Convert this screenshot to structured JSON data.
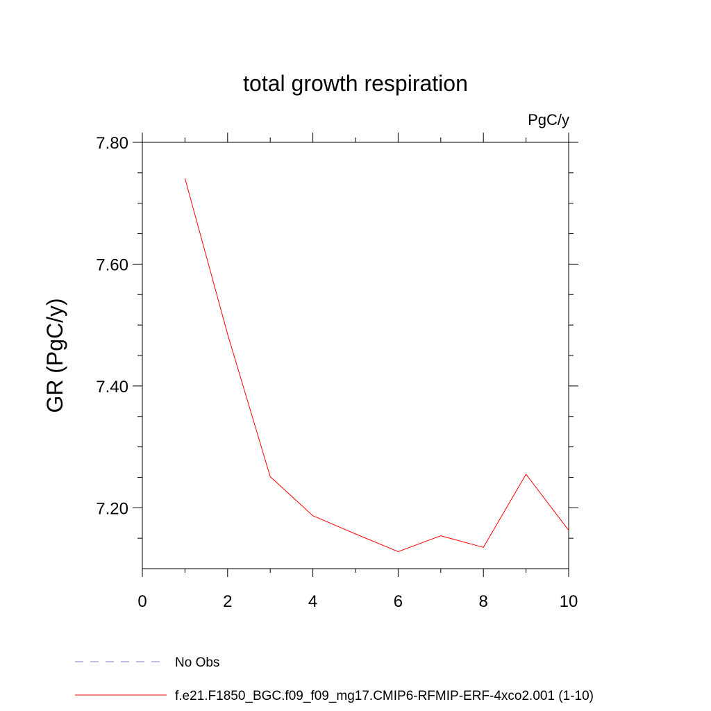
{
  "chart_data": {
    "type": "line",
    "title": "total growth respiration",
    "units": "PgC/y",
    "xlabel": "",
    "ylabel": "GR  (PgC/y)",
    "xlim": [
      0,
      10
    ],
    "ylim": [
      7.1,
      7.8
    ],
    "x_ticks": [
      0,
      2,
      4,
      6,
      8,
      10
    ],
    "x_tick_labels": [
      "0",
      "2",
      "4",
      "6",
      "8",
      "10"
    ],
    "y_ticks": [
      7.2,
      7.4,
      7.6,
      7.8
    ],
    "y_tick_labels": [
      "7.20",
      "7.40",
      "7.60",
      "7.80"
    ],
    "grid": false,
    "legend_position": "bottom",
    "series": [
      {
        "name": "No Obs",
        "color": "#7f7fbf",
        "style": "dashed",
        "x": [],
        "y": []
      },
      {
        "name": "f.e21.F1850_BGC.f09_f09_mg17.CMIP6-RFMIP-ERF-4xco2.001 (1-10)",
        "color": "#ff0000",
        "style": "solid",
        "x": [
          1,
          2,
          3,
          4,
          5,
          6,
          7,
          8,
          9,
          10
        ],
        "y": [
          7.741,
          7.485,
          7.251,
          7.187,
          7.157,
          7.128,
          7.154,
          7.135,
          7.255,
          7.163
        ]
      }
    ]
  }
}
